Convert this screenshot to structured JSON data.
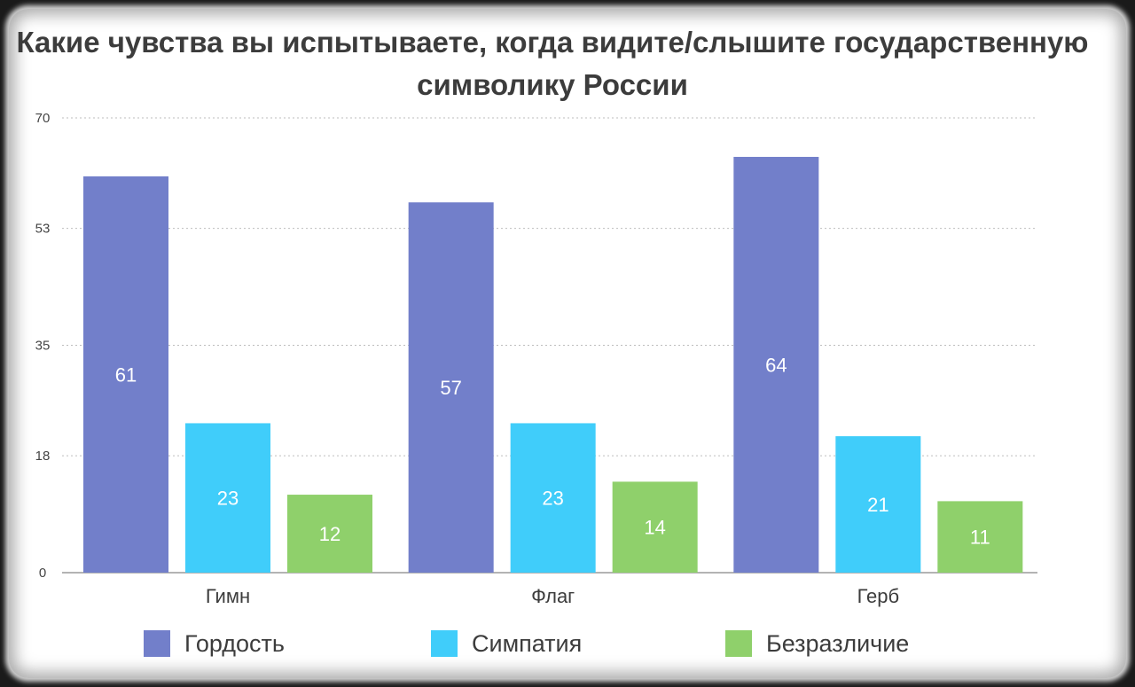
{
  "chart_data": {
    "type": "bar",
    "title": "Какие чувства вы испытываете, когда видите/слышите государственную символику России",
    "categories": [
      "Гимн",
      "Флаг",
      "Герб"
    ],
    "series": [
      {
        "name": "Гордость",
        "values": [
          61,
          57,
          64
        ],
        "color": "#727fca"
      },
      {
        "name": "Симпатия",
        "values": [
          23,
          23,
          21
        ],
        "color": "#40cdfa"
      },
      {
        "name": "Безразличие",
        "values": [
          12,
          14,
          11
        ],
        "color": "#8fd06b"
      }
    ],
    "yticks": [
      "0",
      "18",
      "35",
      "53",
      "70"
    ],
    "ylim": [
      0,
      70
    ],
    "grid": true,
    "legend_position": "bottom",
    "xlabel": "",
    "ylabel": ""
  }
}
